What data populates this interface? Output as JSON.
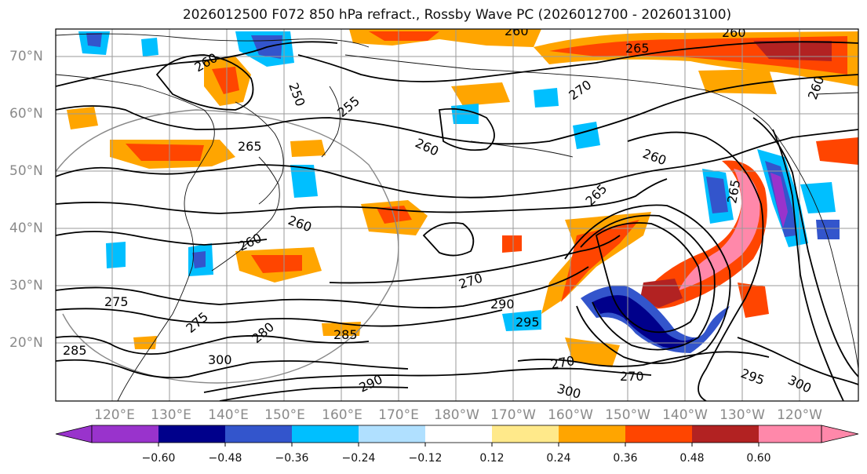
{
  "title": "2026012500 F072 850 hPa refract., Rossby Wave PC (2026012700 - 2026013100)",
  "map": {
    "lat_labels": [
      "70°N",
      "60°N",
      "50°N",
      "40°N",
      "30°N",
      "20°N"
    ],
    "lon_labels": [
      "120°E",
      "130°E",
      "140°E",
      "150°E",
      "160°E",
      "170°E",
      "180°W",
      "170°W",
      "160°W",
      "150°W",
      "140°W",
      "130°W",
      "120°W"
    ],
    "contour_labels": [
      "260",
      "265",
      "270",
      "275",
      "280",
      "285",
      "290",
      "295",
      "300",
      "250",
      "255"
    ]
  },
  "colorbar": {
    "colors": [
      "#9933cc",
      "#00008b",
      "#3355cc",
      "#00bfff",
      "#b0e0ff",
      "#ffffff",
      "#ffe98a",
      "#ffa500",
      "#ff4500",
      "#b22222",
      "#ff88aa"
    ],
    "ticks": [
      "−0.60",
      "−0.48",
      "−0.36",
      "−0.24",
      "−0.12",
      "0.12",
      "0.24",
      "0.36",
      "0.48",
      "0.60"
    ]
  }
}
